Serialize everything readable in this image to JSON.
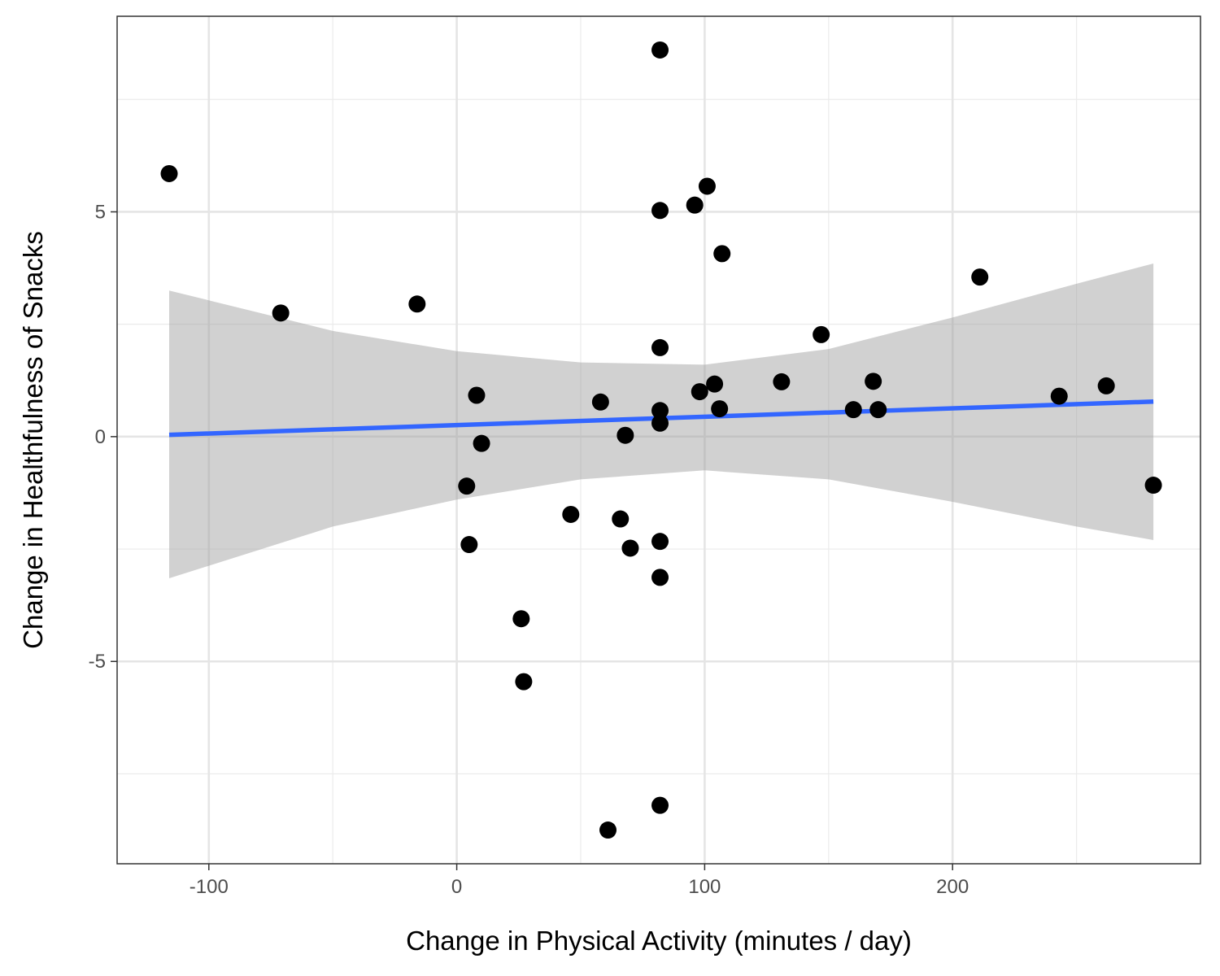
{
  "chart_data": {
    "type": "scatter",
    "title": "",
    "xlabel": "Change in Physical Activity (minutes / day)",
    "ylabel": "Change in Healthfulness of Snacks",
    "xlim": [
      -137,
      300
    ],
    "ylim": [
      -9.5,
      9.35
    ],
    "x_ticks": [
      -100,
      0,
      100,
      200
    ],
    "x_tick_labels": [
      "-100",
      "0",
      "100",
      "200"
    ],
    "y_ticks": [
      -5,
      0,
      5
    ],
    "y_tick_labels": [
      "-5",
      "0",
      "5"
    ],
    "x_minor": [
      -50,
      50,
      150,
      250
    ],
    "y_minor": [
      -7.5,
      -2.5,
      2.5,
      7.5
    ],
    "grid": true,
    "legend": "none",
    "points": [
      {
        "x": -116,
        "y": 5.85
      },
      {
        "x": -71,
        "y": 2.75
      },
      {
        "x": -16,
        "y": 2.95
      },
      {
        "x": 4,
        "y": -1.1
      },
      {
        "x": 5,
        "y": -2.4
      },
      {
        "x": 8,
        "y": 0.92
      },
      {
        "x": 10,
        "y": -0.15
      },
      {
        "x": 26,
        "y": -4.05
      },
      {
        "x": 27,
        "y": -5.45
      },
      {
        "x": 46,
        "y": -1.73
      },
      {
        "x": 58,
        "y": 0.77
      },
      {
        "x": 61,
        "y": -8.75
      },
      {
        "x": 66,
        "y": -1.83
      },
      {
        "x": 68,
        "y": 0.03
      },
      {
        "x": 70,
        "y": -2.48
      },
      {
        "x": 82,
        "y": 8.6
      },
      {
        "x": 82,
        "y": 5.03
      },
      {
        "x": 82,
        "y": 1.98
      },
      {
        "x": 82,
        "y": 0.58
      },
      {
        "x": 82,
        "y": 0.3
      },
      {
        "x": 82,
        "y": -2.33
      },
      {
        "x": 82,
        "y": -3.13
      },
      {
        "x": 82,
        "y": -8.2
      },
      {
        "x": 96,
        "y": 5.15
      },
      {
        "x": 98,
        "y": 1.0
      },
      {
        "x": 101,
        "y": 5.57
      },
      {
        "x": 104,
        "y": 1.17
      },
      {
        "x": 106,
        "y": 0.62
      },
      {
        "x": 107,
        "y": 4.07
      },
      {
        "x": 131,
        "y": 1.22
      },
      {
        "x": 147,
        "y": 2.27
      },
      {
        "x": 160,
        "y": 0.6
      },
      {
        "x": 168,
        "y": 1.23
      },
      {
        "x": 170,
        "y": 0.6
      },
      {
        "x": 211,
        "y": 3.55
      },
      {
        "x": 243,
        "y": 0.9
      },
      {
        "x": 262,
        "y": 1.13
      },
      {
        "x": 281,
        "y": -1.08
      }
    ],
    "fit_line": {
      "x": [
        -116,
        281
      ],
      "y": [
        0.04,
        0.78
      ],
      "color": "#3366FF"
    },
    "confidence_band": {
      "x": [
        -116,
        -50,
        0,
        50,
        100,
        150,
        200,
        250,
        281
      ],
      "lower": [
        -3.15,
        -2.0,
        -1.4,
        -0.95,
        -0.75,
        -0.95,
        -1.45,
        -2.0,
        -2.3
      ],
      "upper": [
        3.25,
        2.35,
        1.9,
        1.65,
        1.6,
        1.95,
        2.65,
        3.4,
        3.85
      ],
      "color": "#999999"
    },
    "point_color": "#000000"
  }
}
